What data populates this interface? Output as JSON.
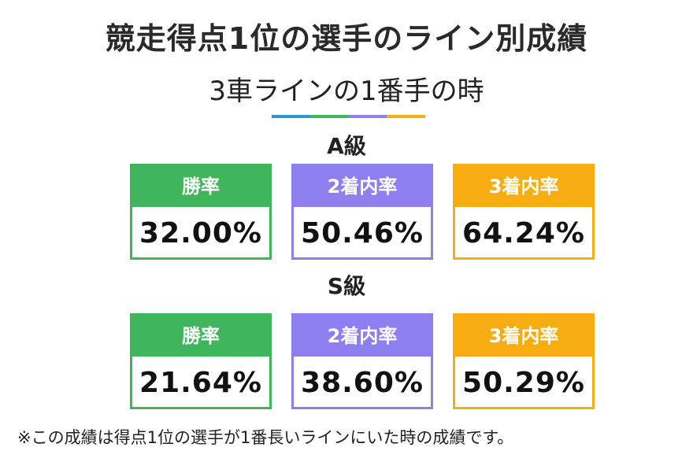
{
  "title": "競走得点1位の選手のライン別成績",
  "subtitle": "3車ラインの1番手の時",
  "color_bar": [
    "#2e95d3",
    "#3fb65c",
    "#8f7ef0",
    "#f7ad12"
  ],
  "colors": {
    "win": "#3fb65c",
    "top2": "#8f7ef0",
    "top3": "#f7ad12"
  },
  "a_class": {
    "label": "A級",
    "win": {
      "label": "勝率",
      "value": "32.00%"
    },
    "top2": {
      "label": "2着内率",
      "value": "50.46%"
    },
    "top3": {
      "label": "3着内率",
      "value": "64.24%"
    }
  },
  "s_class": {
    "label": "S級",
    "win": {
      "label": "勝率",
      "value": "21.64%"
    },
    "top2": {
      "label": "2着内率",
      "value": "38.60%"
    },
    "top3": {
      "label": "3着内率",
      "value": "50.29%"
    }
  },
  "footnote": "※この成績は得点1位の選手が1番長いラインにいた時の成績です。"
}
